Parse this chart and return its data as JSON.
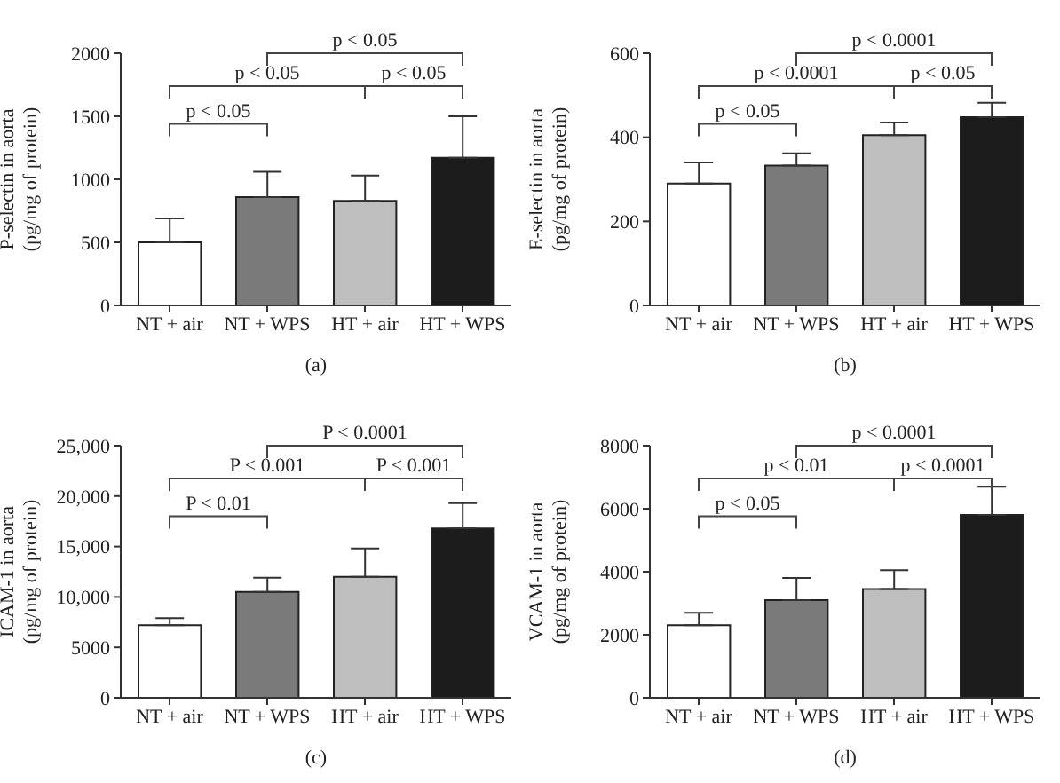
{
  "chart_data": [
    {
      "type": "bar",
      "title": "(a)",
      "ylabel": "P-selectin in aorta\n(pg/mg of protein)",
      "categories": [
        "NT + air",
        "NT + WPS",
        "HT + air",
        "HT + WPS"
      ],
      "values": [
        500,
        860,
        830,
        1170
      ],
      "colors": [
        "#ffffff",
        "#7a7a7a",
        "#bebebe",
        "#1c1c1c"
      ],
      "errors": [
        [
          500,
          690
        ],
        [
          860,
          1060
        ],
        [
          830,
          1030
        ],
        [
          1170,
          1500
        ]
      ],
      "ylim": [
        0,
        2000
      ],
      "yticks": [
        0,
        500,
        1000,
        1500,
        2000
      ],
      "grid": false,
      "legend": false,
      "annotations": [
        "p < 0.05",
        "p < 0.05",
        "p < 0.05",
        "p < 0.05"
      ]
    },
    {
      "type": "bar",
      "title": "(b)",
      "ylabel": "E-selectin in aorta\n(pg/mg of protein)",
      "categories": [
        "NT + air",
        "NT + WPS",
        "HT + air",
        "HT + WPS"
      ],
      "values": [
        290,
        333,
        405,
        448
      ],
      "colors": [
        "#ffffff",
        "#7a7a7a",
        "#bebebe",
        "#1c1c1c"
      ],
      "errors": [
        [
          290,
          340
        ],
        [
          333,
          362
        ],
        [
          405,
          435
        ],
        [
          448,
          482
        ]
      ],
      "ylim": [
        0,
        600
      ],
      "yticks": [
        0,
        200,
        400,
        600
      ],
      "grid": false,
      "legend": false,
      "annotations": [
        "p < 0.05",
        "p < 0.0001",
        "p < 0.05",
        "p < 0.0001"
      ]
    },
    {
      "type": "bar",
      "title": "(c)",
      "ylabel": "ICAM-1 in aorta\n(pg/mg of protein)",
      "categories": [
        "NT + air",
        "NT + WPS",
        "HT + air",
        "HT + WPS"
      ],
      "values": [
        7200,
        10500,
        12000,
        16800
      ],
      "colors": [
        "#ffffff",
        "#7a7a7a",
        "#bebebe",
        "#1c1c1c"
      ],
      "errors": [
        [
          7200,
          7900
        ],
        [
          10500,
          11900
        ],
        [
          12000,
          14800
        ],
        [
          16800,
          19300
        ]
      ],
      "ylim": [
        0,
        25000
      ],
      "yticks": [
        0,
        5000,
        {
          "value": 10000,
          "label": "10,000"
        },
        {
          "value": 15000,
          "label": "15,000"
        },
        {
          "value": 20000,
          "label": "20,000"
        },
        {
          "value": 25000,
          "label": "25,000"
        }
      ],
      "grid": false,
      "legend": false,
      "annotations": [
        "P < 0.01",
        "P < 0.001",
        "P < 0.001",
        "P < 0.0001"
      ]
    },
    {
      "type": "bar",
      "title": "(d)",
      "ylabel": "VCAM-1 in aorta\n(pg/mg of protein)",
      "categories": [
        "NT + air",
        "NT + WPS",
        "HT + air",
        "HT + WPS"
      ],
      "values": [
        2300,
        3100,
        3450,
        5800
      ],
      "colors": [
        "#ffffff",
        "#7a7a7a",
        "#bebebe",
        "#1c1c1c"
      ],
      "errors": [
        [
          2300,
          2700
        ],
        [
          3100,
          3800
        ],
        [
          3450,
          4050
        ],
        [
          5800,
          6700
        ]
      ],
      "ylim": [
        0,
        8000
      ],
      "yticks": [
        0,
        2000,
        4000,
        6000,
        8000
      ],
      "grid": false,
      "legend": false,
      "annotations": [
        "p < 0.05",
        "p < 0.01",
        "p < 0.0001",
        "p < 0.0001"
      ]
    }
  ]
}
